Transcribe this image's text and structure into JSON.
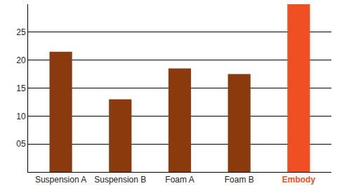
{
  "chart_data": {
    "type": "bar",
    "categories": [
      "Suspension A",
      "Suspension B",
      "Foam A",
      "Foam B",
      "Embody"
    ],
    "values": [
      21.5,
      13,
      18.5,
      17.5,
      30
    ],
    "colors": [
      "#8b3a0e",
      "#8b3a0e",
      "#8b3a0e",
      "#8b3a0e",
      "#f04e23"
    ],
    "ylim": [
      0,
      30
    ],
    "yticks": [
      {
        "value": 5,
        "label": "05"
      },
      10,
      15,
      20,
      25
    ],
    "grid": true
  }
}
